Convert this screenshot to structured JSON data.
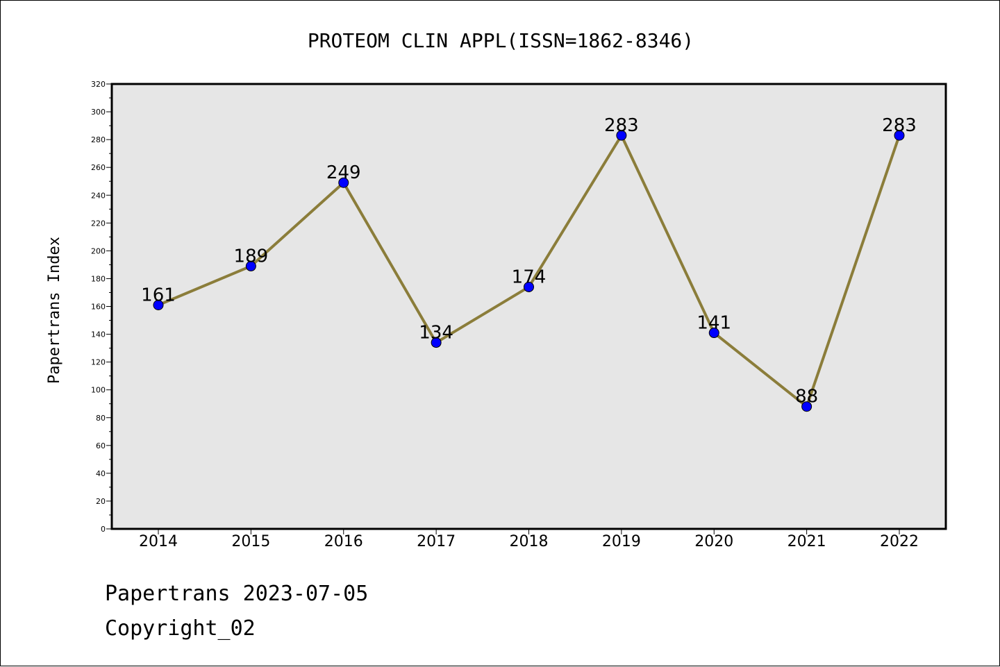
{
  "chart_data": {
    "type": "line",
    "title": "PROTEOM CLIN APPL(ISSN=1862-8346)",
    "xlabel": "",
    "ylabel": "Papertrans Index",
    "categories": [
      "2014",
      "2015",
      "2016",
      "2017",
      "2018",
      "2019",
      "2020",
      "2021",
      "2022"
    ],
    "series": [
      {
        "values": [
          161,
          189,
          249,
          134,
          174,
          283,
          141,
          88,
          283
        ]
      }
    ],
    "ylim": [
      0,
      320
    ],
    "yticks": [
      0,
      20,
      40,
      60,
      80,
      100,
      120,
      140,
      160,
      180,
      200,
      220,
      240,
      260,
      280,
      300,
      320
    ],
    "grid": false,
    "legend": "none",
    "colors": {
      "line": "#8b7d3a",
      "marker": "#0000ff",
      "plot_bg": "#e6e6e6"
    }
  },
  "footer": {
    "line1": "Papertrans 2023-07-05",
    "line2": "Copyright_02"
  }
}
